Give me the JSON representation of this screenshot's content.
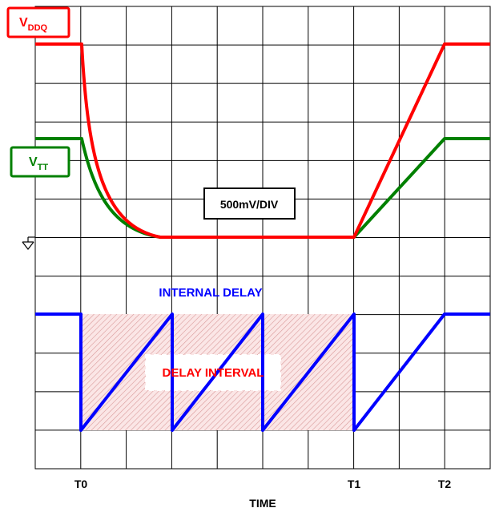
{
  "labels": {
    "vddq_main": "V",
    "vddq_sub": "DDQ",
    "vtt_main": "V",
    "vtt_sub": "TT",
    "scale": "500mV/DIV",
    "internal_delay": "INTERNAL DELAY",
    "delay_interval": "DELAY INTERVAL",
    "t0": "T0",
    "t1": "T1",
    "t2": "T2",
    "time_axis": "TIME"
  },
  "colors": {
    "vddq": "#ff0000",
    "vtt": "#008000",
    "internal_delay": "#0000ff",
    "delay_interval_hatch": "#cc0000",
    "grid": "#000000",
    "label_text": "#000000"
  },
  "icons": {
    "ground": "ground-icon"
  }
}
